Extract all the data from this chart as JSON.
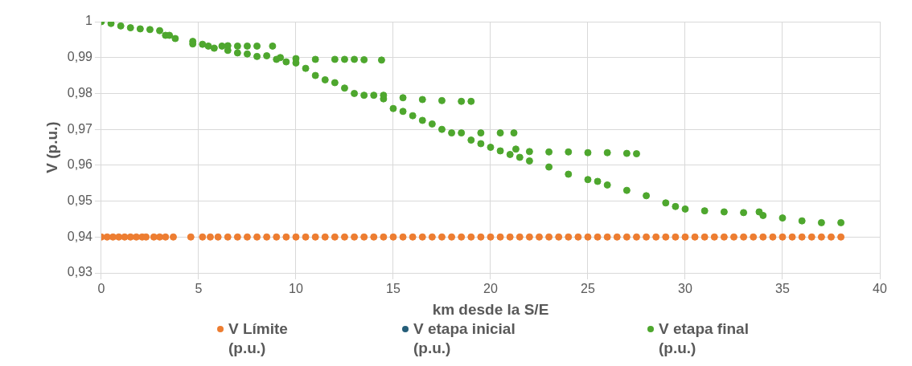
{
  "chart_data": {
    "type": "scatter",
    "xlabel": "km desde la S/E",
    "ylabel": "V (p.u.)",
    "xlim": [
      0,
      40
    ],
    "xticks": [
      0,
      5,
      10,
      15,
      20,
      25,
      30,
      35,
      40
    ],
    "ylim": [
      0.93,
      1
    ],
    "yticks": [
      {
        "value": 0.93,
        "label": "0,93"
      },
      {
        "value": 0.94,
        "label": "0,94"
      },
      {
        "value": 0.95,
        "label": "0,95"
      },
      {
        "value": 0.96,
        "label": "0,96"
      },
      {
        "value": 0.97,
        "label": "0,97"
      },
      {
        "value": 0.98,
        "label": "0,98"
      },
      {
        "value": 0.99,
        "label": "0,99"
      },
      {
        "value": 1,
        "label": "1"
      }
    ],
    "grid": true,
    "legend": "bottom",
    "marker": "circle",
    "series": [
      {
        "name": "V Límite (p.u.)",
        "color": "#ed7d31",
        "x": [
          0,
          0.3,
          0.6,
          0.9,
          1.2,
          1.5,
          1.8,
          2.1,
          2.3,
          2.7,
          3,
          3.3,
          3.7,
          4.6,
          5.2,
          5.6,
          6,
          6.5,
          7,
          7.5,
          8,
          8.5,
          9,
          9.5,
          10,
          10.5,
          11,
          11.5,
          12,
          12.5,
          13,
          13.5,
          14,
          14.5,
          15,
          15.5,
          16,
          16.5,
          17,
          17.5,
          18,
          18.5,
          19,
          19.5,
          20,
          20.5,
          21,
          21.5,
          22,
          22.5,
          23,
          23.5,
          24,
          24.5,
          25,
          25.5,
          26,
          26.5,
          27,
          27.5,
          28,
          28.5,
          29,
          29.5,
          30,
          30.5,
          31,
          31.5,
          32,
          32.5,
          33,
          33.5,
          34,
          34.5,
          35,
          35.5,
          36,
          36.5,
          37,
          37.5,
          38
        ],
        "values": [
          0.94,
          0.94,
          0.94,
          0.94,
          0.94,
          0.94,
          0.94,
          0.94,
          0.94,
          0.94,
          0.94,
          0.94,
          0.94,
          0.94,
          0.94,
          0.94,
          0.94,
          0.94,
          0.94,
          0.94,
          0.94,
          0.94,
          0.94,
          0.94,
          0.94,
          0.94,
          0.94,
          0.94,
          0.94,
          0.94,
          0.94,
          0.94,
          0.94,
          0.94,
          0.94,
          0.94,
          0.94,
          0.94,
          0.94,
          0.94,
          0.94,
          0.94,
          0.94,
          0.94,
          0.94,
          0.94,
          0.94,
          0.94,
          0.94,
          0.94,
          0.94,
          0.94,
          0.94,
          0.94,
          0.94,
          0.94,
          0.94,
          0.94,
          0.94,
          0.94,
          0.94,
          0.94,
          0.94,
          0.94,
          0.94,
          0.94,
          0.94,
          0.94,
          0.94,
          0.94,
          0.94,
          0.94,
          0.94,
          0.94,
          0.94,
          0.94,
          0.94,
          0.94,
          0.94,
          0.94,
          0.94
        ]
      },
      {
        "name": "V etapa inicial (p.u.)",
        "color": "#255e79"
      },
      {
        "name": "V etapa final (p.u.)",
        "color": "#4ea72e",
        "x": [
          0,
          0.5,
          1,
          1.5,
          2,
          2.5,
          3,
          3.3,
          3.5,
          3.8,
          4.7,
          4.7,
          5.2,
          5.5,
          5.8,
          6.2,
          6.5,
          7,
          7.5,
          8,
          8.5,
          9,
          9.5,
          10,
          10.5,
          11,
          11.5,
          12,
          12.5,
          13,
          13.5,
          14,
          14.5,
          15,
          15.5,
          16,
          16.5,
          17,
          17.5,
          18,
          19,
          19.5,
          20,
          20.5,
          21,
          21.5,
          22,
          23,
          24,
          25,
          25.5,
          26,
          27,
          28,
          29,
          29.5,
          30,
          31,
          32,
          33,
          33.8,
          34,
          35,
          36,
          37,
          38,
          6.5,
          7,
          7.5,
          8,
          8.8,
          9.2,
          10,
          11,
          12,
          12.5,
          13,
          13.5,
          14.4,
          14.5,
          15.5,
          16.5,
          17.5,
          18.5,
          19,
          18.5,
          19.5,
          20.5,
          21.2,
          21.3,
          22,
          23,
          24,
          25,
          26,
          27,
          27.5
        ],
        "values": [
          1,
          0.9995,
          0.9988,
          0.9983,
          0.998,
          0.9978,
          0.9975,
          0.9962,
          0.9962,
          0.9953,
          0.9945,
          0.9938,
          0.9937,
          0.9932,
          0.9926,
          0.9932,
          0.992,
          0.9913,
          0.991,
          0.9903,
          0.9905,
          0.9895,
          0.9888,
          0.9885,
          0.987,
          0.985,
          0.9838,
          0.983,
          0.9815,
          0.98,
          0.9795,
          0.9795,
          0.9785,
          0.9758,
          0.975,
          0.9738,
          0.9725,
          0.9715,
          0.97,
          0.969,
          0.967,
          0.966,
          0.965,
          0.964,
          0.963,
          0.9622,
          0.9612,
          0.9595,
          0.9575,
          0.956,
          0.9555,
          0.9545,
          0.953,
          0.9515,
          0.9495,
          0.9485,
          0.9478,
          0.9473,
          0.947,
          0.9468,
          0.947,
          0.946,
          0.9453,
          0.9445,
          0.944,
          0.944,
          0.9933,
          0.9932,
          0.9932,
          0.9932,
          0.9932,
          0.99,
          0.9897,
          0.9895,
          0.9895,
          0.9895,
          0.9895,
          0.9894,
          0.9893,
          0.9795,
          0.9788,
          0.9783,
          0.978,
          0.9778,
          0.9778,
          0.969,
          0.969,
          0.969,
          0.969,
          0.9645,
          0.9638,
          0.9637,
          0.9637,
          0.9635,
          0.9635,
          0.9633,
          0.9632
        ]
      }
    ]
  }
}
